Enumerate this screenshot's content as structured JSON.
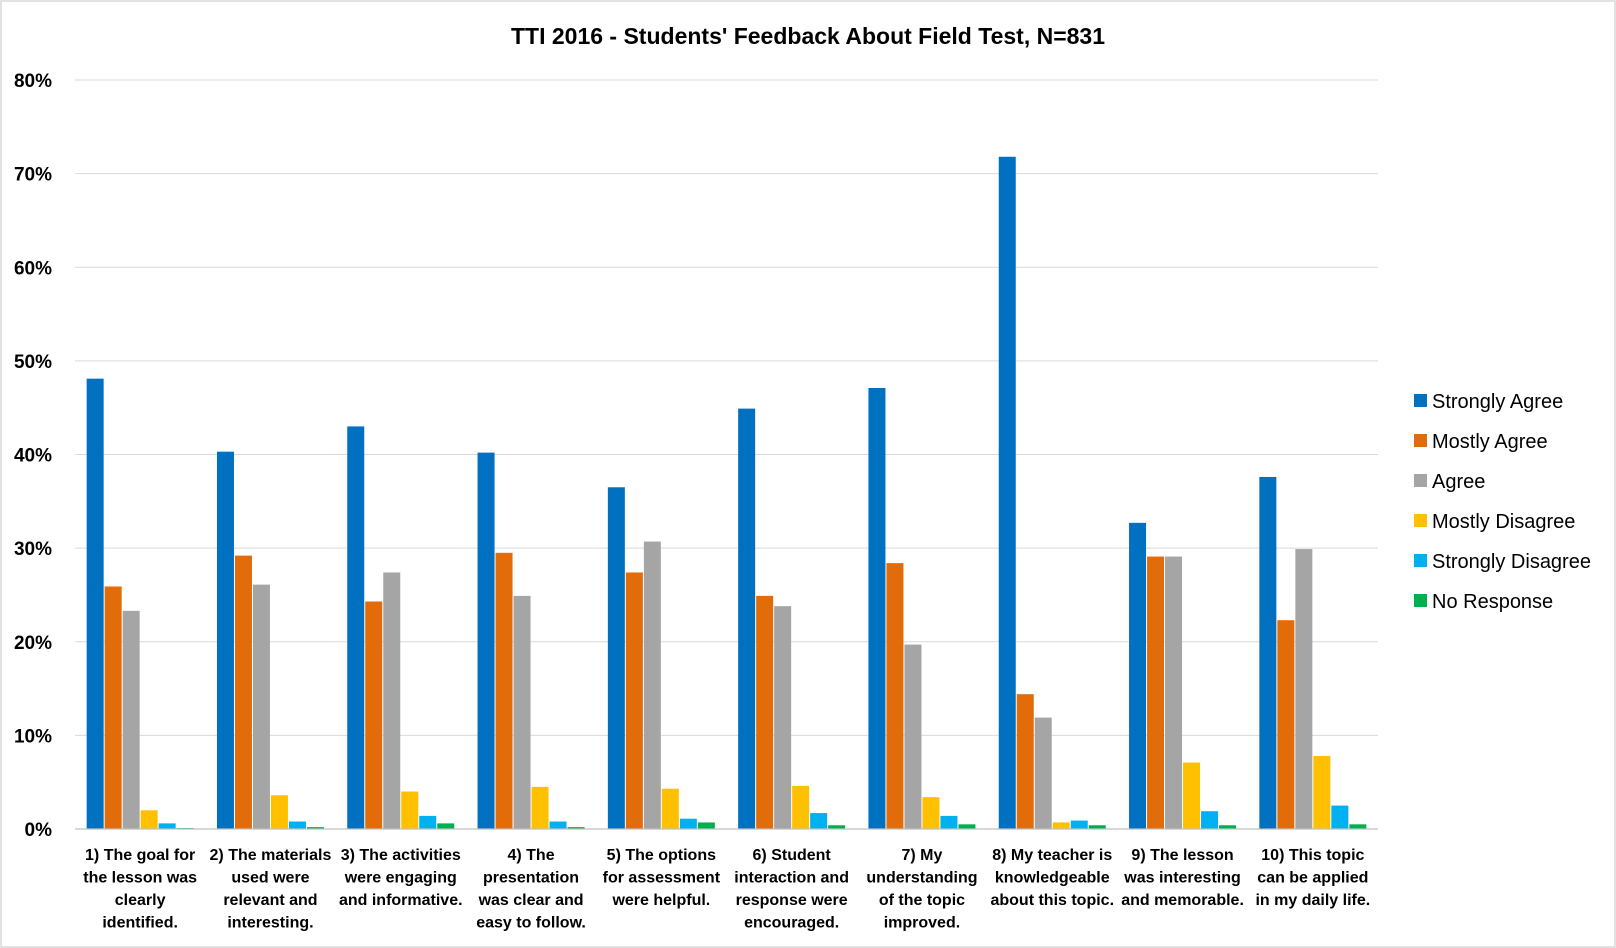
{
  "chart_data": {
    "type": "bar",
    "title": "TTI 2016 - Students' Feedback About Field Test, N=831",
    "xlabel": "",
    "ylabel": "",
    "ylim": [
      0,
      80
    ],
    "yticks": [
      "0%",
      "10%",
      "20%",
      "30%",
      "40%",
      "50%",
      "60%",
      "70%",
      "80%"
    ],
    "grid": true,
    "legend_position": "right",
    "categories": [
      [
        "1) The goal for",
        "the lesson was",
        "clearly",
        "identified."
      ],
      [
        "2) The materials",
        "used were",
        "relevant and",
        "interesting."
      ],
      [
        "3) The activities",
        "were engaging",
        "and informative."
      ],
      [
        "4) The",
        "presentation",
        "was clear and",
        "easy to follow."
      ],
      [
        "5) The options",
        "for assessment",
        "were helpful."
      ],
      [
        "6) Student",
        "interaction and",
        "response were",
        "encouraged."
      ],
      [
        "7) My",
        "understanding",
        "of the topic",
        "improved."
      ],
      [
        "8) My teacher is",
        "knowledgeable",
        "about this topic."
      ],
      [
        "9) The lesson",
        "was interesting",
        "and memorable."
      ],
      [
        "10) This topic",
        "can be applied",
        "in my daily life."
      ]
    ],
    "series": [
      {
        "name": "Strongly Agree",
        "color": "#0070c0",
        "values": [
          48.1,
          40.3,
          43.0,
          40.2,
          36.5,
          44.9,
          47.1,
          71.8,
          32.7,
          37.6
        ]
      },
      {
        "name": "Mostly Agree",
        "color": "#e36c0a",
        "values": [
          25.9,
          29.2,
          24.3,
          29.5,
          27.4,
          24.9,
          28.4,
          14.4,
          29.1,
          22.3
        ]
      },
      {
        "name": "Agree",
        "color": "#a5a5a5",
        "values": [
          23.3,
          26.1,
          27.4,
          24.9,
          30.7,
          23.8,
          19.7,
          11.9,
          29.1,
          29.9
        ]
      },
      {
        "name": "Mostly Disagree",
        "color": "#ffc000",
        "values": [
          2.0,
          3.6,
          4.0,
          4.5,
          4.3,
          4.6,
          3.4,
          0.7,
          7.1,
          7.8
        ]
      },
      {
        "name": "Strongly Disagree",
        "color": "#00b0f0",
        "values": [
          0.6,
          0.8,
          1.4,
          0.8,
          1.1,
          1.7,
          1.4,
          0.9,
          1.9,
          2.5
        ]
      },
      {
        "name": "No Response",
        "color": "#00b050",
        "values": [
          0.1,
          0.2,
          0.6,
          0.2,
          0.7,
          0.4,
          0.5,
          0.4,
          0.4,
          0.5
        ]
      }
    ]
  }
}
